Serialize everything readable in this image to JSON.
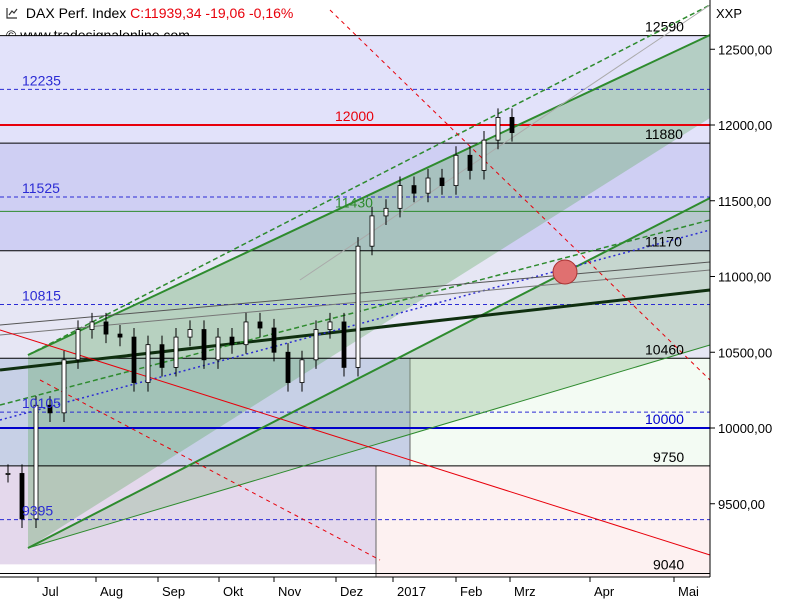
{
  "header": {
    "title": "DAX Perf. Index",
    "quote": "C:11939,34 -19,06 -0,16%",
    "website": "www.tradesignalonline.com",
    "corner_label": "XXP",
    "title_color": "#000000",
    "quote_color": "#e8000b"
  },
  "chart_data": {
    "type": "candlestick",
    "title": "DAX Perf. Index",
    "ylim": [
      9100,
      12750
    ],
    "y_ticks": [
      {
        "value": 9500,
        "label": "9500,00"
      },
      {
        "value": 10000,
        "label": "10000,00"
      },
      {
        "value": 10500,
        "label": "10500,00"
      },
      {
        "value": 11000,
        "label": "11000,00"
      },
      {
        "value": 11500,
        "label": "11500,00"
      },
      {
        "value": 12000,
        "label": "12000,00"
      },
      {
        "value": 12500,
        "label": "12500,00"
      }
    ],
    "x_ticks": [
      "Jul",
      "Aug",
      "Sep",
      "Okt",
      "Nov",
      "Dez",
      "2017",
      "Feb",
      "Mrz",
      "Apr",
      "Mai"
    ],
    "levels": [
      {
        "value": 12590,
        "label": "12590",
        "color": "#000000",
        "style": "solid"
      },
      {
        "value": 12235,
        "label": "12235",
        "color": "#2b2bd4",
        "style": "dashed"
      },
      {
        "value": 12000,
        "label": "12000",
        "color": "#e8000b",
        "style": "solid"
      },
      {
        "value": 11880,
        "label": "11880",
        "color": "#000000",
        "style": "solid"
      },
      {
        "value": 11525,
        "label": "11525",
        "color": "#2b2bd4",
        "style": "dashed"
      },
      {
        "value": 11430,
        "label": "11430",
        "color": "#2e8b2e",
        "style": "solid"
      },
      {
        "value": 11170,
        "label": "11170",
        "color": "#000000",
        "style": "solid"
      },
      {
        "value": 10815,
        "label": "10815",
        "color": "#2b2bd4",
        "style": "dashed"
      },
      {
        "value": 10460,
        "label": "10460",
        "color": "#000000",
        "style": "solid"
      },
      {
        "value": 10105,
        "label": "10105",
        "color": "#2b2bd4",
        "style": "dashed"
      },
      {
        "value": 10000,
        "label": "10000",
        "color": "#0000cc",
        "style": "solid"
      },
      {
        "value": 9750,
        "label": "9750",
        "color": "#000000",
        "style": "solid"
      },
      {
        "value": 9395,
        "label": "9395",
        "color": "#2b2bd4",
        "style": "dashed"
      },
      {
        "value": 9040,
        "label": "9040",
        "color": "#000000",
        "style": "solid"
      }
    ],
    "series": [
      {
        "name": "",
        "weekly_close": [
          9700,
          9400,
          10150,
          10100,
          10450,
          10650,
          10700,
          10620,
          10600,
          10300,
          10550,
          10400,
          10600,
          10650,
          10450,
          10600,
          10550,
          10700,
          10660,
          10500,
          10300,
          10450,
          10650,
          10700,
          10400,
          11200,
          11400,
          11450,
          11600,
          11550,
          11650,
          11600,
          11800,
          11700,
          11900,
          12050,
          11950
        ]
      }
    ]
  }
}
